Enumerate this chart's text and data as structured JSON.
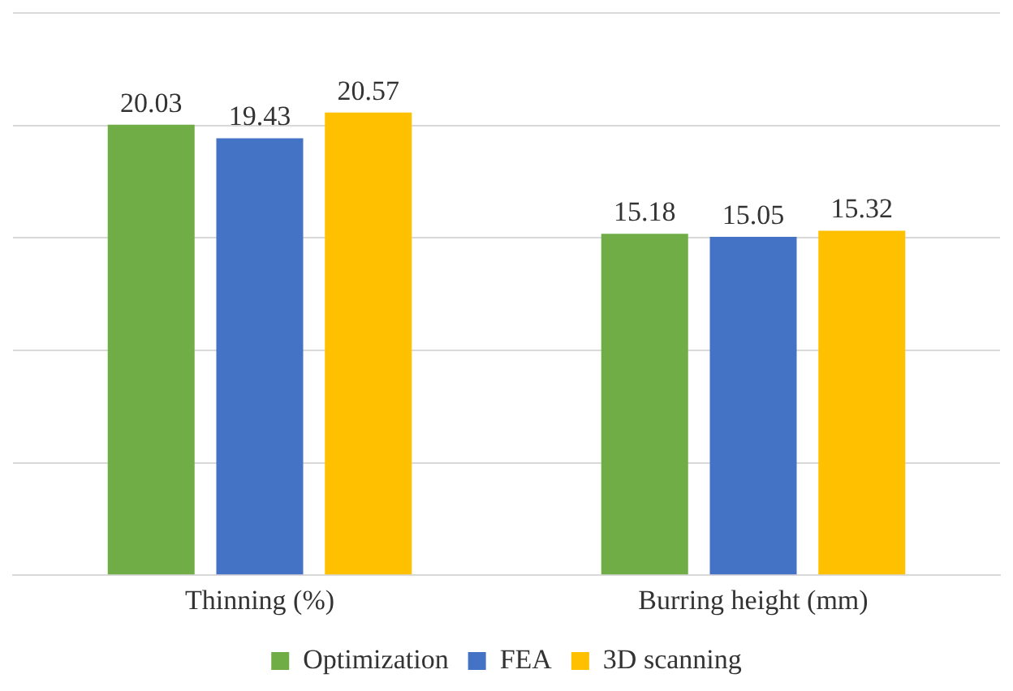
{
  "chart_data": {
    "type": "bar",
    "categories": [
      "Thinning (%)",
      "Burring height (mm)"
    ],
    "series": [
      {
        "name": "Optimization",
        "color": "#70ad47",
        "values": [
          20.03,
          15.18
        ]
      },
      {
        "name": "FEA",
        "color": "#4472c4",
        "values": [
          19.43,
          15.05
        ]
      },
      {
        "name": "3D scanning",
        "color": "#ffc000",
        "values": [
          20.57,
          15.32
        ]
      }
    ],
    "ylim": [
      0,
      25
    ],
    "yticks": [
      {
        "value": 0,
        "label": null
      },
      {
        "value": 5,
        "label": null
      },
      {
        "value": 10,
        "label": null
      },
      {
        "value": 15,
        "label": null
      },
      {
        "value": 20,
        "label": null
      },
      {
        "value": 25,
        "label": null
      }
    ],
    "grid": "y",
    "tick_labels": "x",
    "legend": "bottom",
    "data_labels": true
  }
}
